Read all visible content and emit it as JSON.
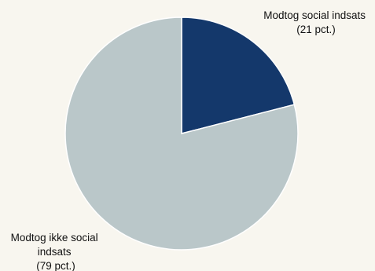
{
  "chart_data": {
    "type": "pie",
    "slices": [
      {
        "label_lines": [
          "Modtog social indsats",
          "(21 pct.)"
        ],
        "value": 21,
        "color": "#14386b"
      },
      {
        "label_lines": [
          "Modtog ikke social",
          "indsats",
          "(79 pct.)"
        ],
        "value": 79,
        "color": "#bac7c9"
      }
    ],
    "start_angle_deg": 0,
    "direction": "clockwise",
    "slice_border_color": "#ffffff",
    "background": "#f8f6ef"
  }
}
